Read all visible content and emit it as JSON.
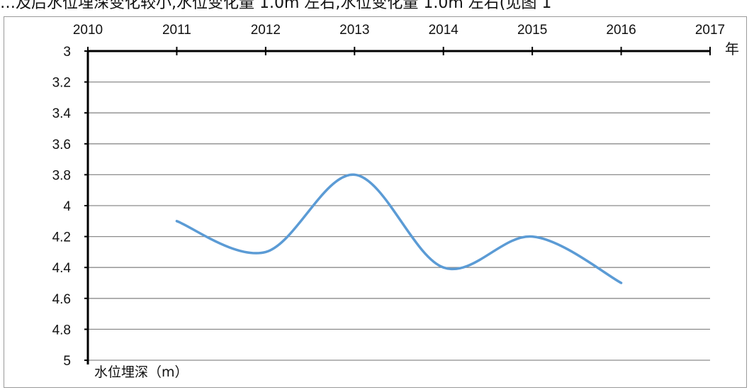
{
  "header": {
    "text": "…及后水位埋深变化较小,水位变化量 1.0m 左右,水位变化量 1.0m 左右(见图 1"
  },
  "chart_data": {
    "type": "line",
    "title": "",
    "x_ticks": [
      "2010",
      "2011",
      "2012",
      "2013",
      "2014",
      "2015",
      "2016",
      "2017"
    ],
    "y_ticks": [
      "3",
      "3.2",
      "3.4",
      "3.6",
      "3.8",
      "4",
      "4.2",
      "4.4",
      "4.6",
      "4.8",
      "5"
    ],
    "xlabel": "年",
    "ylabel": "水位埋深（m）",
    "xlim": [
      2010,
      2017
    ],
    "ylim": [
      3,
      5
    ],
    "y_inverted": true,
    "x_axis_position": "top",
    "grid": "horizontal",
    "smooth": true,
    "series": [
      {
        "name": "",
        "color": "#5b9bd5",
        "x": [
          2011,
          2012,
          2013,
          2014,
          2015,
          2016
        ],
        "values": [
          4.1,
          4.3,
          3.8,
          4.4,
          4.2,
          4.5
        ]
      }
    ]
  }
}
